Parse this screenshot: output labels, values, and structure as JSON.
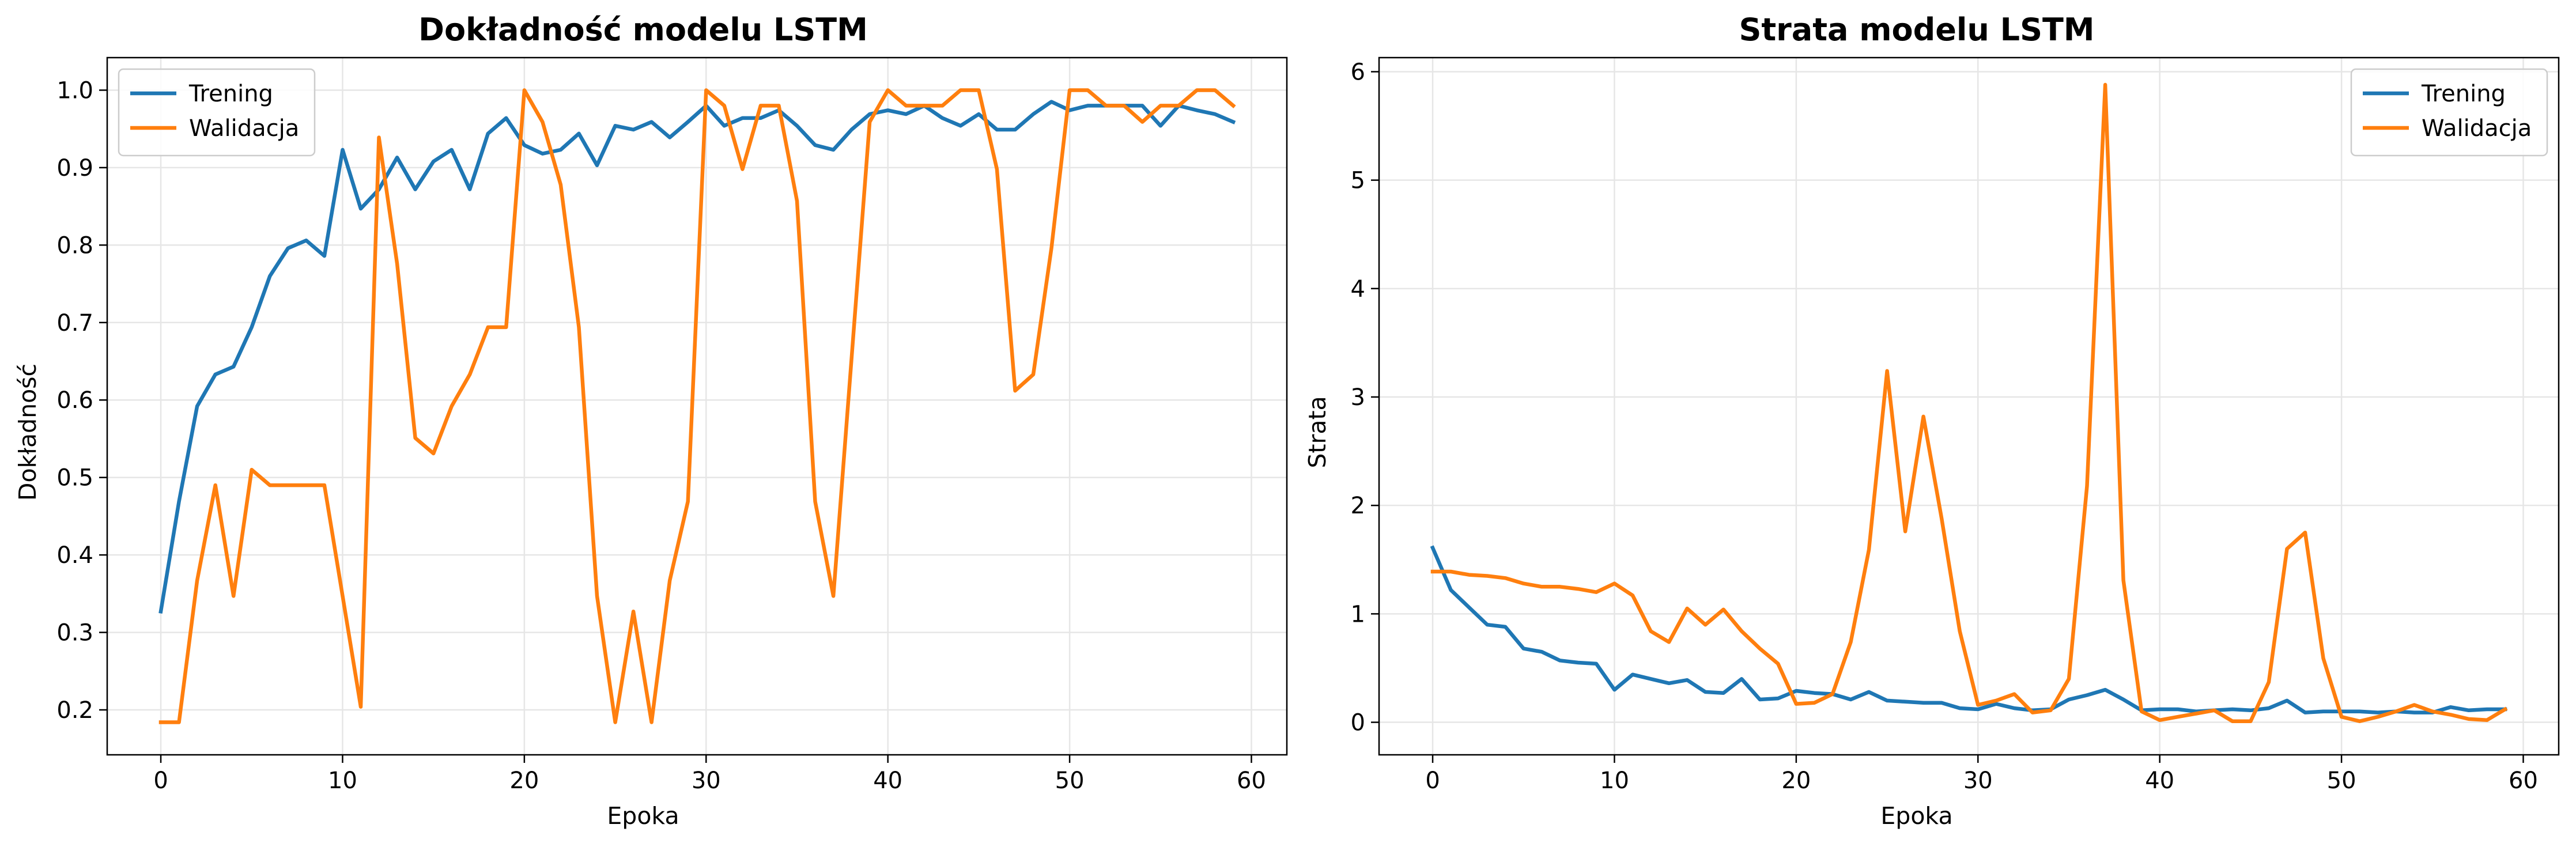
{
  "colors": {
    "train": "#1f77b4",
    "val": "#ff7f0e",
    "grid": "#e6e6e6",
    "axis": "#000000"
  },
  "chart_data": [
    {
      "type": "line",
      "title": "Dokładność modelu LSTM",
      "xlabel": "Epoka",
      "ylabel": "Dokładność",
      "xlim": [
        -2.95,
        61.95
      ],
      "ylim": [
        0.142,
        1.042
      ],
      "xticks": [
        0,
        10,
        20,
        30,
        40,
        50,
        60
      ],
      "yticks": [
        0.2,
        0.3,
        0.4,
        0.5,
        0.6,
        0.7,
        0.8,
        0.9,
        1.0
      ],
      "ytick_labels": [
        "0.2",
        "0.3",
        "0.4",
        "0.5",
        "0.6",
        "0.7",
        "0.8",
        "0.9",
        "1.0"
      ],
      "grid": true,
      "legend_position": "upper-left",
      "x": [
        0,
        1,
        2,
        3,
        4,
        5,
        6,
        7,
        8,
        9,
        10,
        11,
        12,
        13,
        14,
        15,
        16,
        17,
        18,
        19,
        20,
        21,
        22,
        23,
        24,
        25,
        26,
        27,
        28,
        29,
        30,
        31,
        32,
        33,
        34,
        35,
        36,
        37,
        38,
        39,
        40,
        41,
        42,
        43,
        44,
        45,
        46,
        47,
        48,
        49,
        50,
        51,
        52,
        53,
        54,
        55,
        56,
        57,
        58,
        59
      ],
      "series": [
        {
          "name": "Trening",
          "values": [
            0.327,
            0.469,
            0.592,
            0.633,
            0.643,
            0.694,
            0.76,
            0.796,
            0.806,
            0.786,
            0.923,
            0.847,
            0.872,
            0.913,
            0.872,
            0.908,
            0.923,
            0.872,
            0.944,
            0.964,
            0.929,
            0.918,
            0.923,
            0.944,
            0.903,
            0.954,
            0.949,
            0.959,
            0.939,
            0.959,
            0.98,
            0.954,
            0.964,
            0.964,
            0.974,
            0.954,
            0.929,
            0.923,
            0.949,
            0.969,
            0.974,
            0.969,
            0.98,
            0.964,
            0.954,
            0.969,
            0.949,
            0.949,
            0.969,
            0.985,
            0.974,
            0.98,
            0.98,
            0.98,
            0.98,
            0.954,
            0.98,
            0.974,
            0.969,
            0.959
          ]
        },
        {
          "name": "Walidacja",
          "values": [
            0.184,
            0.184,
            0.367,
            0.49,
            0.347,
            0.51,
            0.49,
            0.49,
            0.49,
            0.49,
            0.347,
            0.204,
            0.939,
            0.776,
            0.551,
            0.531,
            0.592,
            0.633,
            0.694,
            0.694,
            1.0,
            0.959,
            0.878,
            0.694,
            0.347,
            0.184,
            0.327,
            0.184,
            0.367,
            0.469,
            1.0,
            0.98,
            0.898,
            0.98,
            0.98,
            0.857,
            0.469,
            0.347,
            0.653,
            0.959,
            1.0,
            0.98,
            0.98,
            0.98,
            1.0,
            1.0,
            0.898,
            0.612,
            0.633,
            0.796,
            1.0,
            1.0,
            0.98,
            0.98,
            0.959,
            0.98,
            0.98,
            1.0,
            1.0,
            0.98
          ]
        }
      ]
    },
    {
      "type": "line",
      "title": "Strata modelu LSTM",
      "xlabel": "Epoka",
      "ylabel": "Strata",
      "xlim": [
        -2.95,
        61.95
      ],
      "ylim": [
        -0.3,
        6.13
      ],
      "xticks": [
        0,
        10,
        20,
        30,
        40,
        50,
        60
      ],
      "yticks": [
        0,
        1,
        2,
        3,
        4,
        5,
        6
      ],
      "ytick_labels": [
        "0",
        "1",
        "2",
        "3",
        "4",
        "5",
        "6"
      ],
      "grid": true,
      "legend_position": "upper-right",
      "x": [
        0,
        1,
        2,
        3,
        4,
        5,
        6,
        7,
        8,
        9,
        10,
        11,
        12,
        13,
        14,
        15,
        16,
        17,
        18,
        19,
        20,
        21,
        22,
        23,
        24,
        25,
        26,
        27,
        28,
        29,
        30,
        31,
        32,
        33,
        34,
        35,
        36,
        37,
        38,
        39,
        40,
        41,
        42,
        43,
        44,
        45,
        46,
        47,
        48,
        49,
        50,
        51,
        52,
        53,
        54,
        55,
        56,
        57,
        58,
        59
      ],
      "series": [
        {
          "name": "Trening",
          "values": [
            1.61,
            1.22,
            1.06,
            0.9,
            0.88,
            0.68,
            0.65,
            0.57,
            0.55,
            0.54,
            0.3,
            0.44,
            0.4,
            0.36,
            0.39,
            0.28,
            0.27,
            0.4,
            0.21,
            0.22,
            0.29,
            0.27,
            0.26,
            0.21,
            0.28,
            0.2,
            0.19,
            0.18,
            0.18,
            0.13,
            0.12,
            0.17,
            0.13,
            0.11,
            0.12,
            0.21,
            0.25,
            0.3,
            0.21,
            0.11,
            0.12,
            0.12,
            0.1,
            0.11,
            0.12,
            0.11,
            0.13,
            0.2,
            0.09,
            0.1,
            0.1,
            0.1,
            0.09,
            0.1,
            0.09,
            0.09,
            0.14,
            0.11,
            0.12,
            0.12
          ]
        },
        {
          "name": "Walidacja",
          "values": [
            1.39,
            1.39,
            1.36,
            1.35,
            1.33,
            1.28,
            1.25,
            1.25,
            1.23,
            1.2,
            1.28,
            1.17,
            0.84,
            0.74,
            1.05,
            0.9,
            1.04,
            0.84,
            0.68,
            0.54,
            0.17,
            0.18,
            0.26,
            0.74,
            1.59,
            3.24,
            1.76,
            2.82,
            1.88,
            0.84,
            0.16,
            0.2,
            0.26,
            0.09,
            0.11,
            0.4,
            2.18,
            5.88,
            1.31,
            0.1,
            0.02,
            0.05,
            0.08,
            0.11,
            0.01,
            0.01,
            0.37,
            1.6,
            1.75,
            0.59,
            0.05,
            0.01,
            0.05,
            0.1,
            0.16,
            0.1,
            0.07,
            0.03,
            0.02,
            0.12
          ]
        }
      ]
    }
  ]
}
